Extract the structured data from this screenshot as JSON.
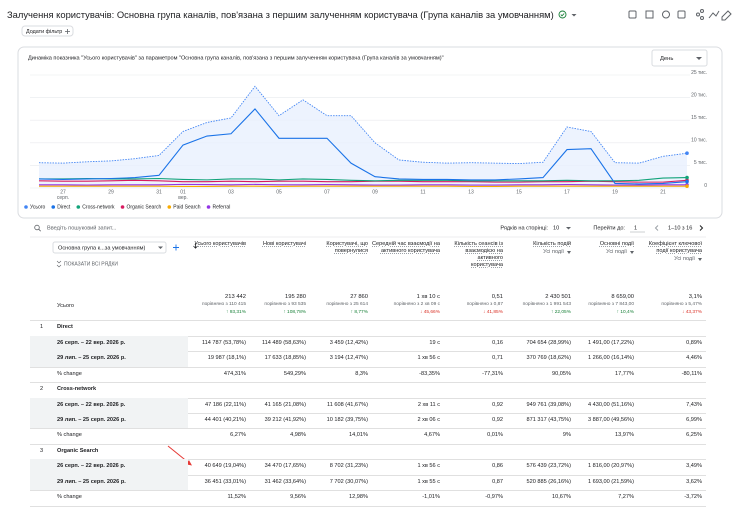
{
  "header": {
    "title": "Залучення користувачів: Основна група каналів, пов'язана з першим залученням користувача (Група каналів за умовчанням)",
    "add_filter": "Додати фільтр"
  },
  "chart_data": {
    "type": "line",
    "title": "Динаміка показника \"Усього користувачів\" за параметром \"Основна група каналів, пов'язана з першим залученням користувача (Група каналів за умовчанням)\"",
    "period_select": "День",
    "categories": [
      null,
      "27",
      null,
      "29",
      null,
      "31",
      "01",
      null,
      "03",
      null,
      "05",
      null,
      "07",
      null,
      "09",
      null,
      "11",
      null,
      "13",
      null,
      "15",
      null,
      "17",
      null,
      "19",
      null,
      "21",
      null
    ],
    "category_sublabels": [
      null,
      "серп.",
      null,
      null,
      null,
      null,
      "вер.",
      null,
      null,
      null,
      null,
      null,
      null,
      null,
      null,
      null,
      null,
      null,
      null,
      null,
      null,
      null,
      null,
      null,
      null,
      null,
      null,
      null
    ],
    "ylim": [
      0,
      25000
    ],
    "yticks": [
      0,
      {
        "value": 5000,
        "label": "5 тис."
      },
      {
        "value": 10000,
        "label": "10 тис."
      },
      {
        "value": 15000,
        "label": "15 тис."
      },
      {
        "value": 20000,
        "label": "20 тис."
      },
      {
        "value": 25000,
        "label": "25 тис."
      }
    ],
    "grid": true,
    "series": [
      {
        "name": "Усього",
        "color": "#4285f4",
        "area": true,
        "dashed": true,
        "values": [
          5600,
          5500,
          5800,
          6000,
          6500,
          7200,
          12500,
          14500,
          15500,
          22500,
          16000,
          19500,
          16000,
          16000,
          10000,
          6200,
          5700,
          5500,
          5600,
          5500,
          5400,
          5700,
          13500,
          12500,
          5600,
          5500,
          7000,
          7700
        ]
      },
      {
        "name": "Direct",
        "color": "#1a73e8",
        "values": [
          2000,
          1900,
          2000,
          2100,
          2300,
          2800,
          9500,
          11500,
          12000,
          17500,
          11000,
          11000,
          11000,
          5500,
          2500,
          2000,
          1900,
          1900,
          1800,
          1800,
          2000,
          2300,
          8500,
          8700,
          1000,
          900,
          1000,
          1400
        ]
      },
      {
        "name": "Cross-network",
        "color": "#12a37a",
        "values": [
          2000,
          2000,
          2100,
          2000,
          2000,
          2100,
          1900,
          1800,
          2000,
          2000,
          1800,
          2000,
          1900,
          1700,
          1600,
          1700,
          1700,
          1700,
          1600,
          1600,
          1600,
          1600,
          1700,
          1600,
          1600,
          1700,
          2200,
          2300
        ]
      },
      {
        "name": "Organic Search",
        "color": "#d81b60",
        "values": [
          1600,
          1500,
          1500,
          1600,
          1700,
          1600,
          1400,
          1400,
          1500,
          1400,
          1500,
          1500,
          1400,
          1400,
          1500,
          1500,
          1400,
          1400,
          1400,
          1300,
          1300,
          1400,
          1400,
          1500,
          1400,
          1300,
          1300,
          1700
        ]
      },
      {
        "name": "Paid Search",
        "color": "#f9ab00",
        "values": [
          400,
          400,
          400,
          400,
          400,
          400,
          350,
          350,
          400,
          400,
          350,
          400,
          400,
          400,
          400,
          400,
          400,
          400,
          350,
          350,
          400,
          400,
          400,
          400,
          400,
          400,
          400,
          400
        ]
      },
      {
        "name": "Referral",
        "color": "#9334e6",
        "values": [
          700,
          700,
          650,
          700,
          700,
          700,
          800,
          750,
          700,
          800,
          700,
          700,
          750,
          700,
          650,
          650,
          700,
          700,
          650,
          650,
          700,
          700,
          750,
          700,
          650,
          650,
          700,
          700
        ]
      }
    ]
  },
  "toolbar": {
    "search_placeholder": "Введіть пошуковий запит...",
    "rows_per_page_label": "Рядків на сторінці:",
    "rows_per_page": "10",
    "go_to_label": "Перейти до:",
    "go_to": "1",
    "range": "1–10 з 16"
  },
  "table": {
    "dimension_header": "Основна група к...за умовчанням)",
    "show_all_rows": "ПОКАЗАТИ ВСІ РЯДКИ",
    "columns": [
      {
        "title": "Усього користувачів"
      },
      {
        "title": "Нові користувачі"
      },
      {
        "title": "Користувачі, що повернулися"
      },
      {
        "title": "Середній час взаємодії на активного користувача"
      },
      {
        "title": "Кількість сеансів із взаємодією на активного користувача"
      },
      {
        "title": "Кількість подій",
        "filter": "Усі події"
      },
      {
        "title": "Основні події",
        "filter": "Усі події"
      },
      {
        "title": "Коефіцієнт ключової події користувача",
        "filter": "Усі події"
      }
    ],
    "totals": {
      "label": "Усього",
      "cells": [
        {
          "value": "213 442",
          "compare": "порівняно з 110 415",
          "change": "↑ 93,31%",
          "trend": "up"
        },
        {
          "value": "195 280",
          "compare": "порівняно з 93 535",
          "change": "↑ 108,78%",
          "trend": "up"
        },
        {
          "value": "27 860",
          "compare": "порівняно з 25 614",
          "change": "↑ 8,77%",
          "trend": "up"
        },
        {
          "value": "1 хв 10 с",
          "compare": "порівняно з 2 хв 09 с",
          "change": "↓ 45,66%",
          "trend": "down"
        },
        {
          "value": "0,51",
          "compare": "порівняно з 0,87",
          "change": "↓ 41,85%",
          "trend": "down"
        },
        {
          "value": "2 430 501",
          "compare": "порівняно з 1 991 543",
          "change": "↑ 22,05%",
          "trend": "up"
        },
        {
          "value": "8 659,00",
          "compare": "порівняно з 7 843,00",
          "change": "↑ 10,4%",
          "trend": "up"
        },
        {
          "value": "3,1%",
          "compare": "порівняно з 5,47%",
          "change": "↓ 43,37%",
          "trend": "down"
        }
      ]
    },
    "groups": [
      {
        "index": "1",
        "name": "Direct",
        "rows": [
          {
            "label": "26 серп. – 22 вер. 2026 р.",
            "cells": [
              "114 787 (53,78%)",
              "114 489 (58,63%)",
              "3 459 (12,42%)",
              "19 с",
              "0,16",
              "704 654 (28,99%)",
              "1 491,00 (17,22%)",
              "0,89%"
            ]
          },
          {
            "label": "29 лип. – 25 серп. 2026 р.",
            "cells": [
              "19 987 (18,1%)",
              "17 633 (18,85%)",
              "3 194 (12,47%)",
              "1 хв 56 с",
              "0,71",
              "370 769 (18,62%)",
              "1 266,00 (16,14%)",
              "4,46%"
            ]
          }
        ],
        "change": {
          "label": "% change",
          "cells": [
            "474,31%",
            "549,29%",
            "8,3%",
            "-83,35%",
            "-77,31%",
            "90,05%",
            "17,77%",
            "-80,11%"
          ]
        }
      },
      {
        "index": "2",
        "name": "Cross-network",
        "rows": [
          {
            "label": "26 серп. – 22 вер. 2026 р.",
            "cells": [
              "47 186 (22,11%)",
              "41 165 (21,08%)",
              "11 608 (41,67%)",
              "2 хв 11 с",
              "0,92",
              "949 761 (39,08%)",
              "4 430,00 (51,16%)",
              "7,43%"
            ]
          },
          {
            "label": "29 лип. – 25 серп. 2026 р.",
            "cells": [
              "44 401 (40,21%)",
              "39 212 (41,92%)",
              "10 182 (39,75%)",
              "2 хв 06 с",
              "0,92",
              "871 317 (43,75%)",
              "3 887,00 (49,56%)",
              "6,99%"
            ]
          }
        ],
        "change": {
          "label": "% change",
          "cells": [
            "6,27%",
            "4,98%",
            "14,01%",
            "4,67%",
            "0,01%",
            "9%",
            "13,97%",
            "6,25%"
          ]
        }
      },
      {
        "index": "3",
        "name": "Organic Search",
        "rows": [
          {
            "label": "26 серп. – 22 вер. 2026 р.",
            "cells": [
              "40 649 (19,04%)",
              "34 470 (17,65%)",
              "8 702 (31,23%)",
              "1 хв 56 с",
              "0,86",
              "576 439 (23,72%)",
              "1 816,00 (20,97%)",
              "3,49%"
            ]
          },
          {
            "label": "29 лип. – 25 серп. 2026 р.",
            "cells": [
              "36 451 (33,01%)",
              "31 462 (33,64%)",
              "7 702 (30,07%)",
              "1 хв 55 с",
              "0,87",
              "520 885 (26,16%)",
              "1 693,00 (21,59%)",
              "3,62%"
            ]
          }
        ],
        "change": {
          "label": "% change",
          "cells": [
            "11,52%",
            "9,56%",
            "12,98%",
            "-1,01%",
            "-0,97%",
            "10,67%",
            "7,27%",
            "-3,72%"
          ]
        }
      }
    ]
  }
}
